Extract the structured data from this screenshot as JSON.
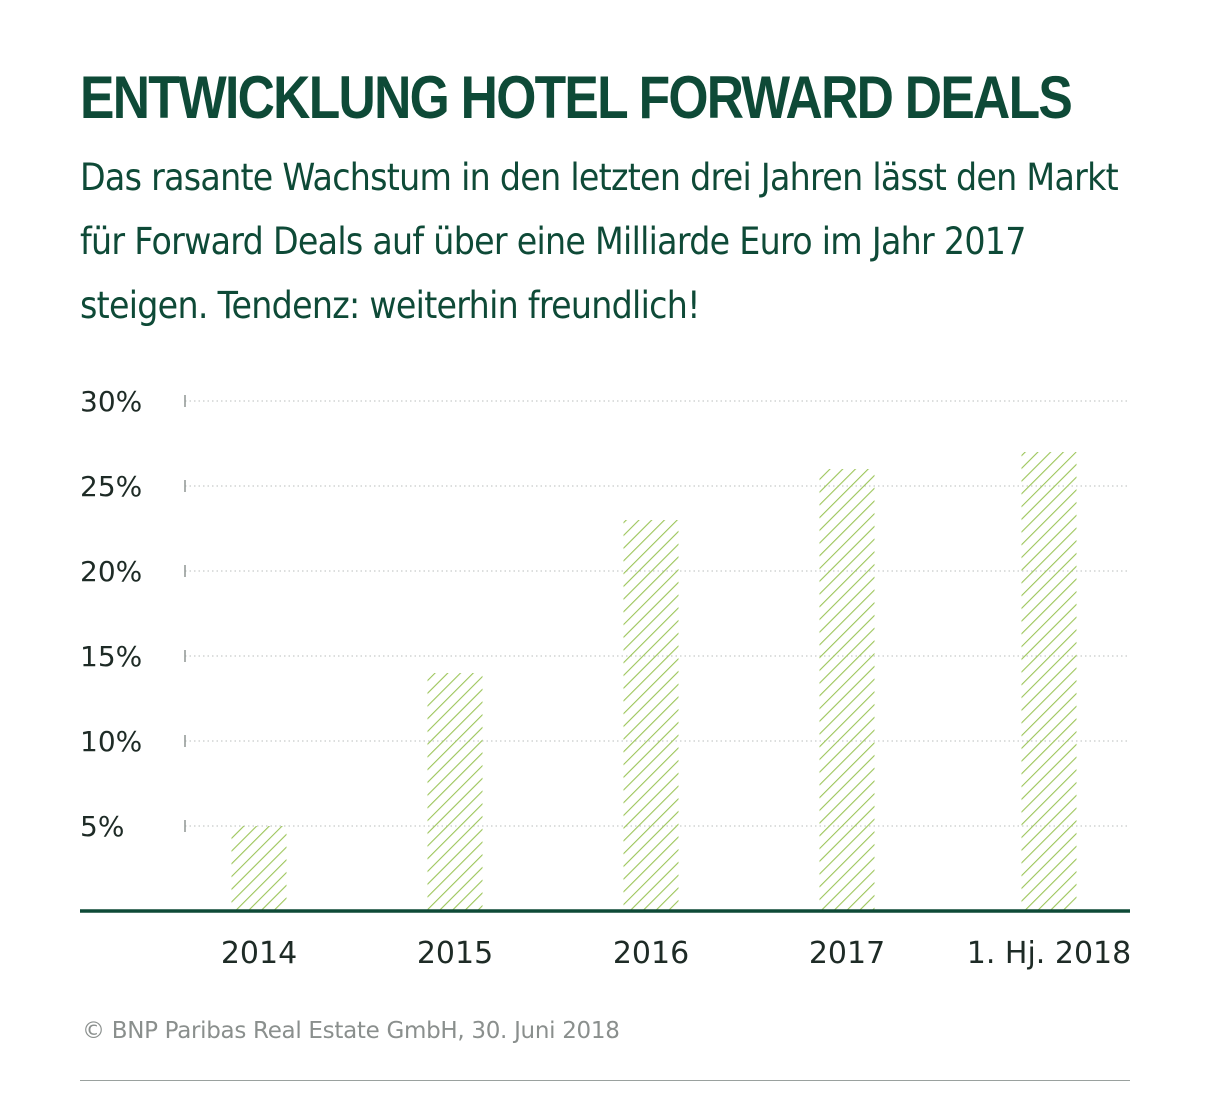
{
  "header": {
    "title": "ENTWICKLUNG HOTEL FORWARD DEALS",
    "subtitle": "Das rasante Wachstum in den letzten drei Jahren lässt den Markt für Forward Deals auf über eine Milliarde Euro im Jahr 2017 steigen. Tendenz: weiterhin freundlich!"
  },
  "source": "© BNP Paribas Real Estate GmbH, 30. Juni 2018",
  "colors": {
    "brand_green": "#0e4a37",
    "bar_hatch": "#9cc55a"
  },
  "chart_data": {
    "type": "bar",
    "title": "",
    "xlabel": "",
    "ylabel": "",
    "categories": [
      "2014",
      "2015",
      "2016",
      "2017",
      "1. Hj. 2018"
    ],
    "values": [
      5,
      14,
      23,
      26,
      27
    ],
    "ylim": [
      0,
      30
    ],
    "yticks": [
      5,
      10,
      15,
      20,
      25,
      30
    ],
    "ytick_labels": [
      "5%",
      "10%",
      "15%",
      "20%",
      "25%",
      "30%"
    ],
    "grid": true,
    "legend": "none"
  }
}
